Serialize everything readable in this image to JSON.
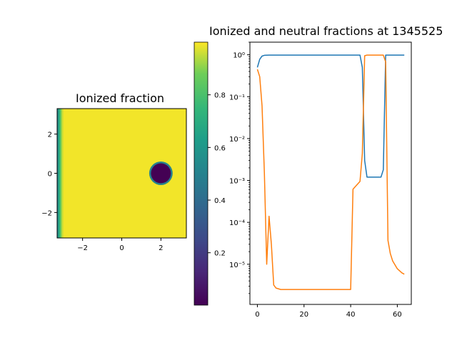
{
  "chart_data": [
    {
      "type": "heatmap",
      "title": "Ionized fraction",
      "xlim": [
        -3.3,
        3.3
      ],
      "ylim": [
        -3.3,
        3.3
      ],
      "xticks": [
        -2,
        0,
        2
      ],
      "yticks": [
        -2,
        0,
        2
      ],
      "xtick_labels": [
        "−2",
        "0",
        "2"
      ],
      "ytick_labels": [
        "−2",
        "0",
        "2"
      ],
      "colormap": "viridis",
      "background_value": 0.99,
      "edge_strip": {
        "x_from": -3.3,
        "x_to": -3.0,
        "values": [
          0.55,
          0.7,
          0.85,
          0.95
        ]
      },
      "ball": {
        "center": [
          2.0,
          0.0
        ],
        "radius": 0.6,
        "inner_value": 0.0,
        "rim_value": 0.5
      },
      "grid": false
    },
    {
      "type": "colorbar",
      "range": [
        0.001,
        1.0
      ],
      "ticks": [
        0.2,
        0.4,
        0.6,
        0.8
      ],
      "tick_labels": [
        "0.2",
        "0.4",
        "0.6",
        "0.8"
      ],
      "colormap": "viridis"
    },
    {
      "type": "line",
      "title": "Ionized and neutral fractions at 1345525",
      "xlim": [
        -3.2,
        66
      ],
      "ylim": [
        1.1e-06,
        2.0
      ],
      "yscale": "log",
      "xticks": [
        0,
        20,
        40,
        60
      ],
      "xtick_labels": [
        "0",
        "20",
        "40",
        "60"
      ],
      "yticks_major": [
        1e-05,
        0.0001,
        0.001,
        0.01,
        0.1,
        1
      ],
      "ytick_labels": [
        "10⁻⁵",
        "10⁻⁴",
        "10⁻³",
        "10⁻²",
        "10⁻¹",
        "10⁰"
      ],
      "grid": false,
      "series": [
        {
          "color": "#1f77b4",
          "x": [
            0,
            1,
            2,
            3,
            5,
            10,
            20,
            30,
            40,
            44,
            45,
            46,
            47,
            50,
            53,
            54,
            55,
            56,
            60,
            63
          ],
          "y": [
            0.5,
            0.78,
            0.93,
            0.97,
            0.98,
            0.98,
            0.98,
            0.98,
            0.98,
            0.98,
            0.5,
            0.003,
            0.0012,
            0.0012,
            0.0012,
            0.0018,
            0.98,
            0.98,
            0.98,
            0.98
          ]
        },
        {
          "color": "#ff7f0e",
          "x": [
            0,
            1,
            2,
            3,
            4,
            5,
            6,
            7,
            8,
            10,
            15,
            20,
            30,
            40,
            41,
            44,
            45,
            46,
            47,
            50,
            53,
            54,
            55,
            56,
            57,
            58,
            60,
            62,
            63
          ],
          "y": [
            0.45,
            0.3,
            0.06,
            0.0015,
            1e-05,
            0.00014,
            3e-05,
            3.2e-06,
            2.7e-06,
            2.5e-06,
            2.5e-06,
            2.5e-06,
            2.5e-06,
            2.5e-06,
            0.00062,
            0.00095,
            0.0044,
            0.95,
            0.98,
            0.98,
            0.98,
            0.98,
            0.68,
            3.7e-05,
            1.8e-05,
            1.2e-05,
            7.8e-06,
            6.2e-06,
            5.8e-06
          ]
        }
      ]
    }
  ]
}
